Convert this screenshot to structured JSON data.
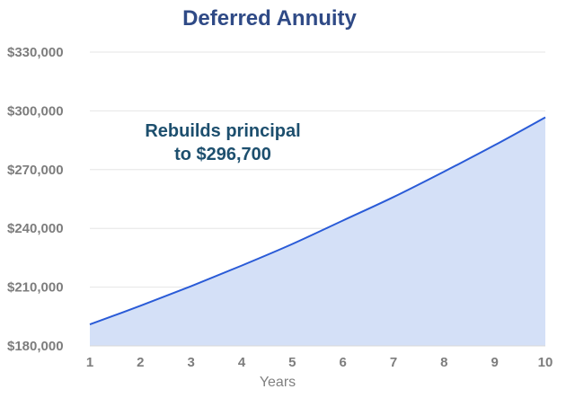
{
  "chart_data": {
    "type": "area",
    "title": "Deferred Annuity",
    "xlabel": "Years",
    "ylabel": "",
    "x": [
      1,
      2,
      3,
      4,
      5,
      6,
      7,
      8,
      9,
      10
    ],
    "xtick_labels": [
      "1",
      "2",
      "3",
      "4",
      "5",
      "6",
      "7",
      "8",
      "9",
      "10"
    ],
    "series": [
      {
        "values": [
          191000,
          200500,
          210500,
          221000,
          232000,
          244000,
          256000,
          269000,
          282500,
          296700
        ]
      }
    ],
    "ylim": [
      180000,
      330000
    ],
    "ytick_values": [
      180000,
      210000,
      240000,
      270000,
      300000,
      330000
    ],
    "ytick_labels": [
      "$180,000",
      "$210,000",
      "$240,000",
      "$270,000",
      "$300,000",
      "$330,000"
    ],
    "grid": "horizontal",
    "annotation": {
      "line1": "Rebuilds principal",
      "line2": "to $296,700"
    },
    "colors": {
      "title": "#2f4a86",
      "line": "#2a5bd7",
      "fill": "#d4e0f7",
      "annotation": "#1d4f6e",
      "grid": "#e6e6e6",
      "tick": "#7d7d7d"
    }
  }
}
